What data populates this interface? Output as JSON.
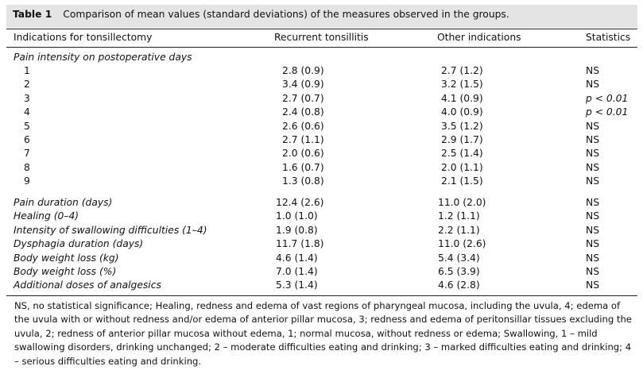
{
  "table": {
    "label": "Table 1",
    "caption": "Comparison of mean values (standard deviations) of the measures observed in the groups.",
    "headers": [
      "Indications for tonsillectomy",
      "Recurrent tonsillitis",
      "Other indications",
      "Statistics"
    ],
    "section_title": "Pain intensity on postoperative days",
    "day_rows": [
      {
        "day": "1",
        "recurrent": "2.8 (0.9)",
        "other": "2.7 (1.2)",
        "stat": "NS"
      },
      {
        "day": "2",
        "recurrent": "3.4 (0.9)",
        "other": "3.2 (1.5)",
        "stat": "NS"
      },
      {
        "day": "3",
        "recurrent": "2.7 (0.7)",
        "other": "4.1 (0.9)",
        "stat": "p < 0.01"
      },
      {
        "day": "4",
        "recurrent": "2.4 (0.8)",
        "other": "4.0 (0.9)",
        "stat": "p < 0.01"
      },
      {
        "day": "5",
        "recurrent": "2.6 (0.6)",
        "other": "3.5 (1.2)",
        "stat": "NS"
      },
      {
        "day": "6",
        "recurrent": "2.7 (1.1)",
        "other": "2.9 (1.7)",
        "stat": "NS"
      },
      {
        "day": "7",
        "recurrent": "2.0 (0.6)",
        "other": "2.5 (1.4)",
        "stat": "NS"
      },
      {
        "day": "8",
        "recurrent": "1.6 (0.7)",
        "other": "2.0 (1.1)",
        "stat": "NS"
      },
      {
        "day": "9",
        "recurrent": "1.3 (0.8)",
        "other": "2.1 (1.5)",
        "stat": "NS"
      }
    ],
    "measure_rows": [
      {
        "measure": "Pain duration (days)",
        "recurrent": "12.4 (2.6)",
        "other": "11.0 (2.0)",
        "stat": "NS"
      },
      {
        "measure": "Healing (0–4)",
        "recurrent": "1.0 (1.0)",
        "other": "1.2 (1.1)",
        "stat": "NS"
      },
      {
        "measure": "Intensity of swallowing difficulties (1–4)",
        "recurrent": "1.9 (0.8)",
        "other": "2.2 (1.1)",
        "stat": "NS"
      },
      {
        "measure": "Dysphagia duration (days)",
        "recurrent": "11.7 (1.8)",
        "other": "11.0 (2.6)",
        "stat": "NS"
      },
      {
        "measure": "Body weight loss (kg)",
        "recurrent": "4.6 (1.4)",
        "other": "5.4 (3.4)",
        "stat": "NS"
      },
      {
        "measure": "Body weight loss (%)",
        "recurrent": "7.0 (1.4)",
        "other": "6.5 (3.9)",
        "stat": "NS"
      },
      {
        "measure": "Additional doses of analgesics",
        "recurrent": "5.3 (1.4)",
        "other": "4.6 (2.8)",
        "stat": "NS"
      }
    ],
    "footnote": "NS, no statistical significance; Healing, redness and edema of vast regions of pharyngeal mucosa, including the uvula, 4; edema of the uvula with or without redness and/or edema of anterior pillar mucosa, 3; redness and edema of peritonsillar tissues excluding the uvula, 2; redness of anterior pillar mucosa without edema, 1; normal mucosa, without redness or edema; Swallowing, 1 – mild swallowing disorders, drinking unchanged; 2 – moderate difficulties eating and drinking; 3 – marked difficulties eating and drinking; 4 – serious difficulties eating and drinking."
  }
}
